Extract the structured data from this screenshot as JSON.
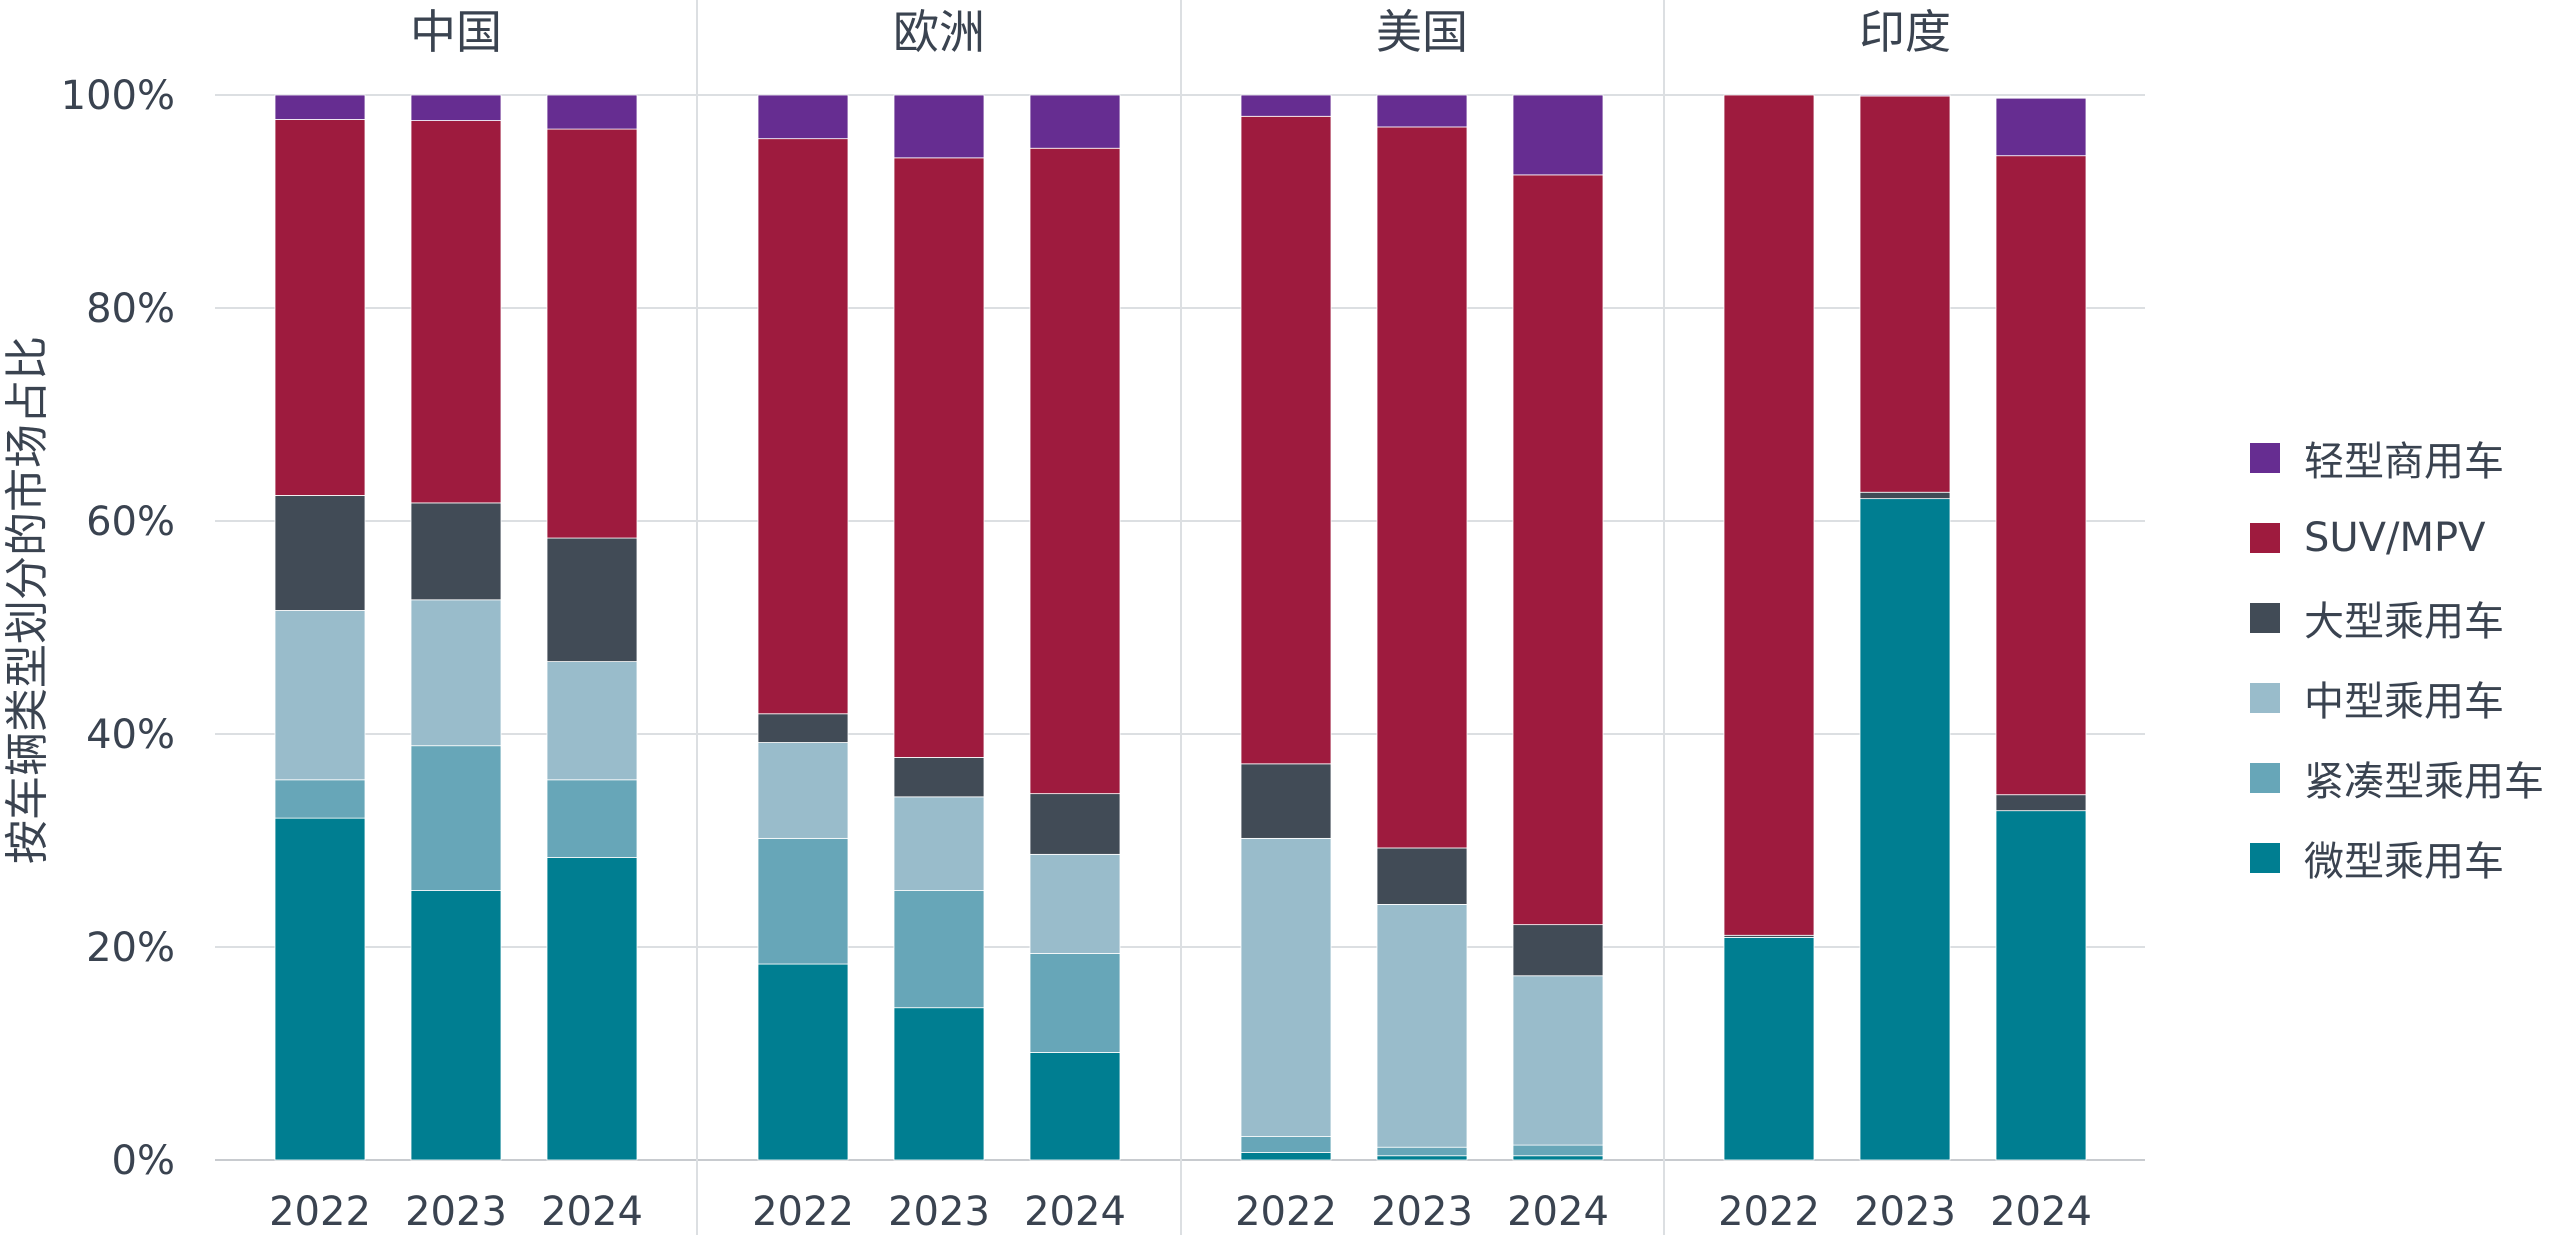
{
  "chart_data": {
    "type": "bar",
    "stacked": true,
    "ylabel": "按车辆类型划分的市场占比",
    "ylim": [
      0,
      100
    ],
    "yticks": [
      "0%",
      "20%",
      "40%",
      "60%",
      "80%",
      "100%"
    ],
    "grid": true,
    "legend_position": "right",
    "panels": [
      {
        "title": "中国",
        "categories": [
          "2022",
          "2023",
          "2024"
        ]
      },
      {
        "title": "欧洲",
        "categories": [
          "2022",
          "2023",
          "2024"
        ]
      },
      {
        "title": "美国",
        "categories": [
          "2022",
          "2023",
          "2024"
        ]
      },
      {
        "title": "印度",
        "categories": [
          "2022",
          "2023",
          "2024"
        ]
      }
    ],
    "series": [
      {
        "name": "微型乘用车",
        "color": "#007e91",
        "values": [
          32.1,
          25.3,
          28.4,
          18.4,
          14.3,
          10.1,
          0.7,
          0.4,
          0.4,
          20.9,
          62.1,
          32.8
        ]
      },
      {
        "name": "紧凑型乘用车",
        "color": "#67a6b8",
        "values": [
          3.6,
          13.6,
          7.3,
          11.8,
          11.0,
          9.3,
          1.5,
          0.8,
          1.0,
          0.0,
          0.0,
          0.0
        ]
      },
      {
        "name": "中型乘用车",
        "color": "#99bccb",
        "values": [
          15.9,
          13.7,
          11.1,
          9.0,
          8.8,
          9.3,
          28.0,
          22.8,
          15.9,
          0.0,
          0.0,
          0.0
        ]
      },
      {
        "name": "大型乘用车",
        "color": "#414b56",
        "values": [
          10.8,
          9.1,
          11.6,
          2.7,
          3.7,
          5.7,
          7.0,
          5.3,
          4.8,
          0.2,
          0.6,
          1.5
        ]
      },
      {
        "name": "SUV/MPV",
        "color": "#9e1b3e",
        "values": [
          35.3,
          35.9,
          38.4,
          54.0,
          56.3,
          60.6,
          60.8,
          67.7,
          70.4,
          78.9,
          37.2,
          60.0
        ]
      },
      {
        "name": "轻型商用车",
        "color": "#662d91",
        "values": [
          2.3,
          2.4,
          3.2,
          4.1,
          5.9,
          5.0,
          2.0,
          3.0,
          7.5,
          0.0,
          0.1,
          5.4
        ]
      }
    ]
  },
  "legend_order": [
    5,
    4,
    3,
    2,
    1,
    0
  ]
}
